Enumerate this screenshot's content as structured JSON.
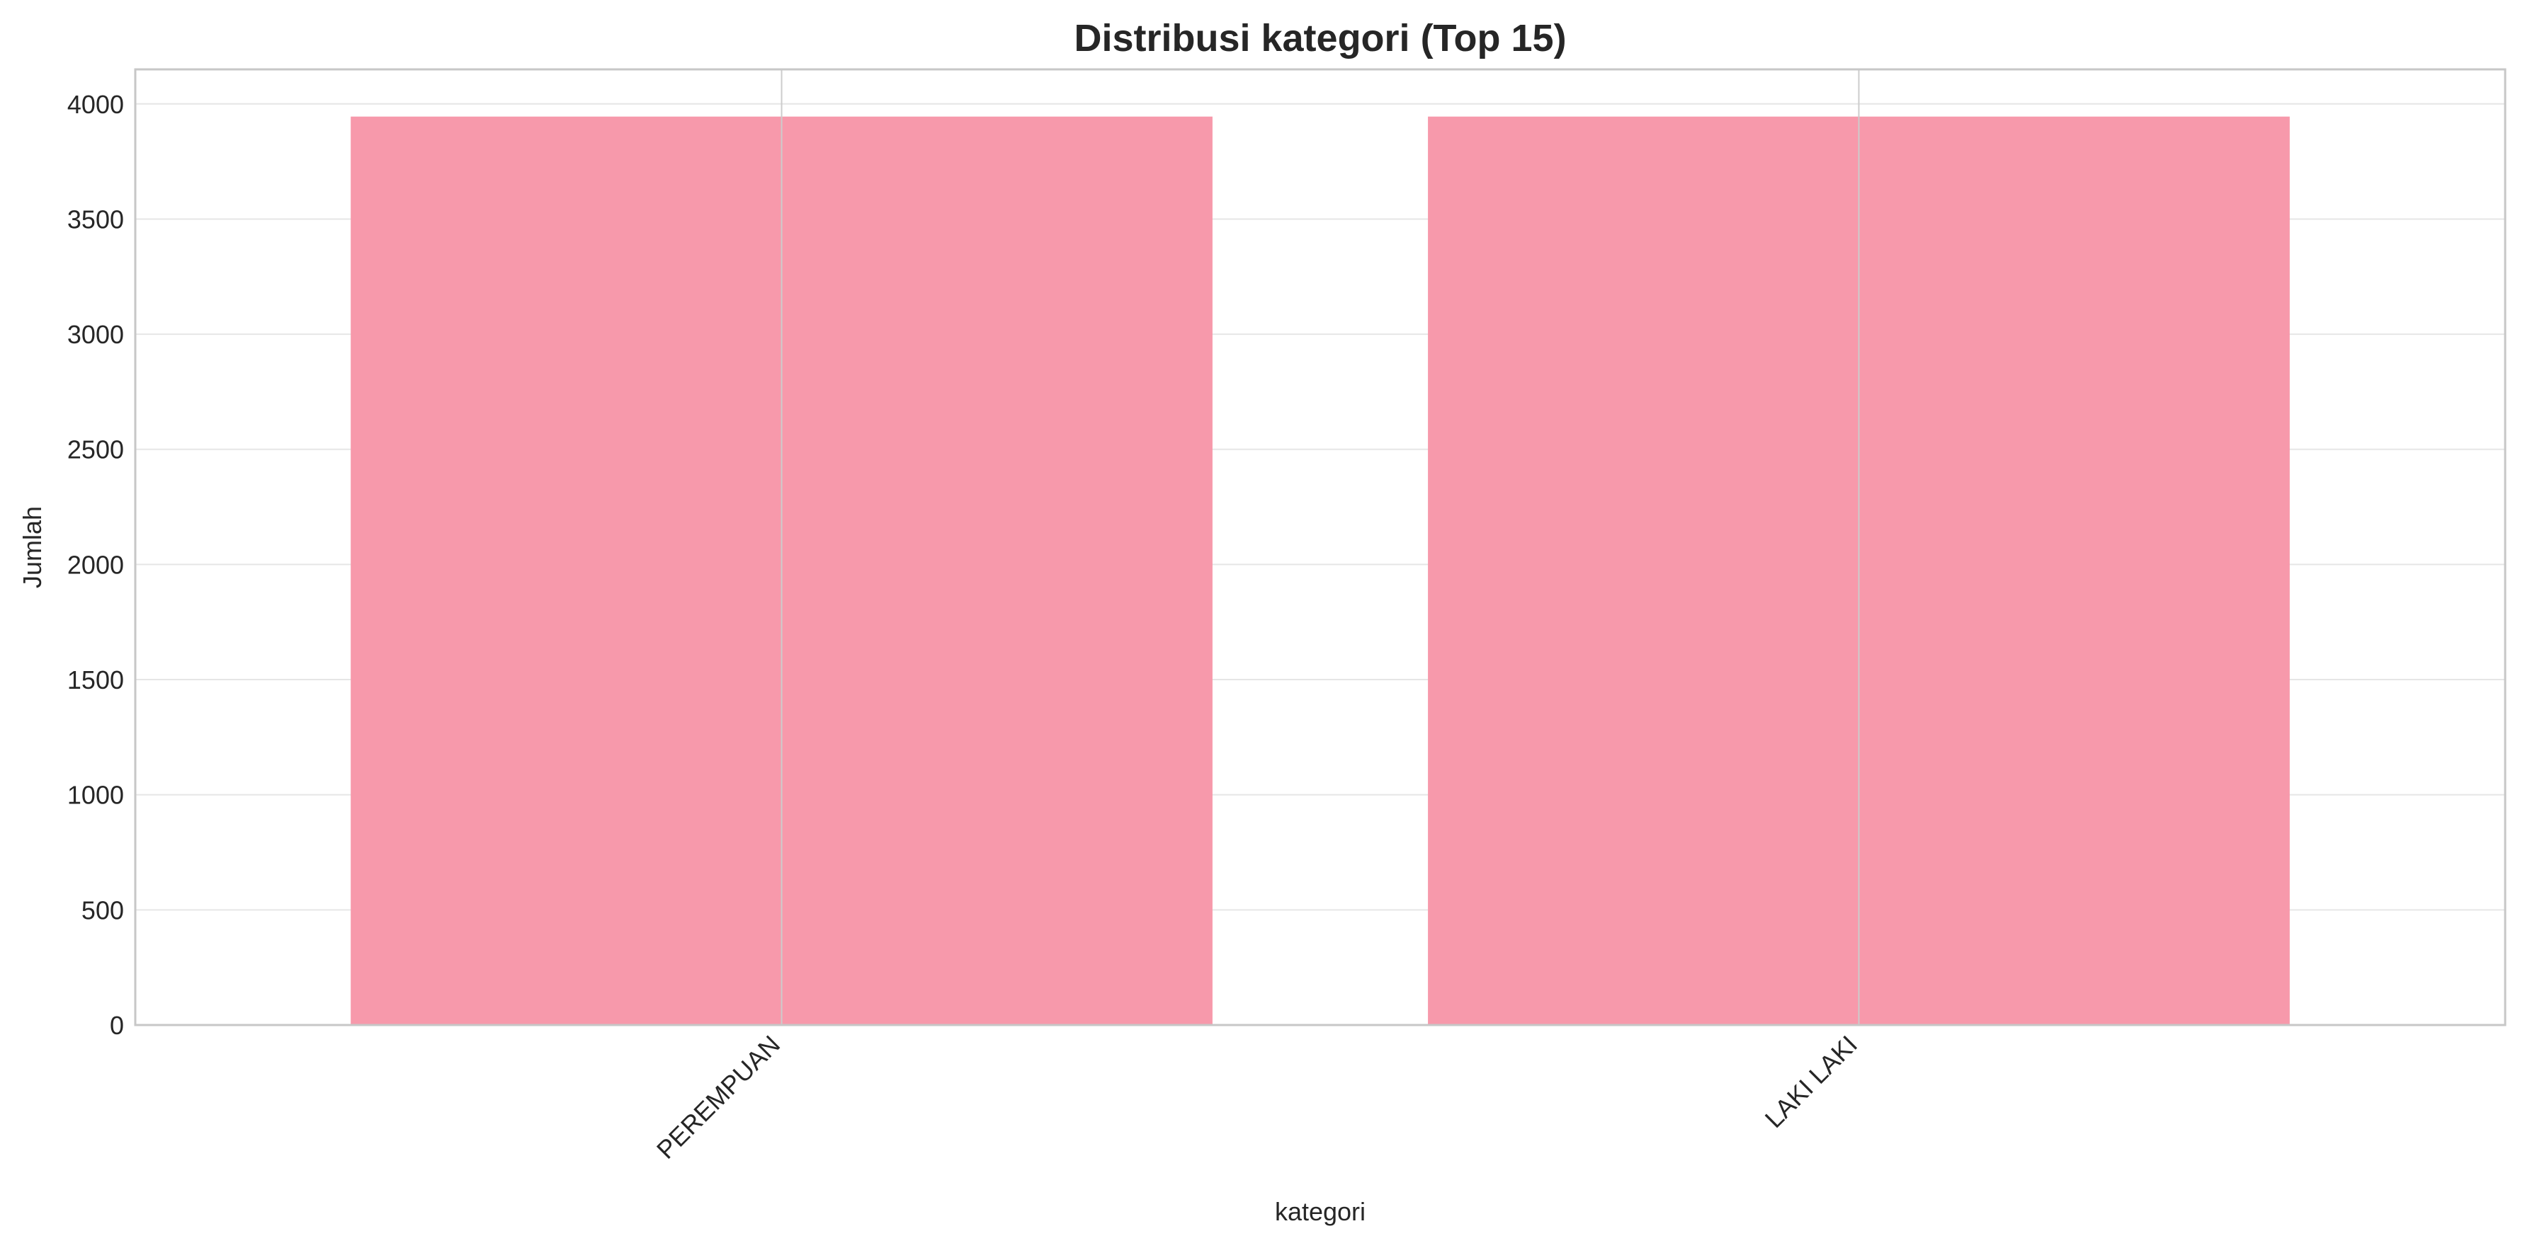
{
  "chart_data": {
    "type": "bar",
    "title": "Distribusi kategori (Top 15)",
    "xlabel": "kategori",
    "ylabel": "Jumlah",
    "categories": [
      "PEREMPUAN",
      "LAKI LAKI"
    ],
    "values": [
      3945,
      3945
    ],
    "ylim": [
      0,
      4150
    ],
    "yticks": [
      0,
      500,
      1000,
      1500,
      2000,
      2500,
      3000,
      3500,
      4000
    ],
    "ytick_labels": [
      "0",
      "500",
      "1000",
      "1500",
      "2000",
      "2500",
      "3000",
      "3500",
      "4000"
    ],
    "grid": true,
    "xtick_rotation_deg": 45,
    "bar_color": "#f799ab"
  }
}
